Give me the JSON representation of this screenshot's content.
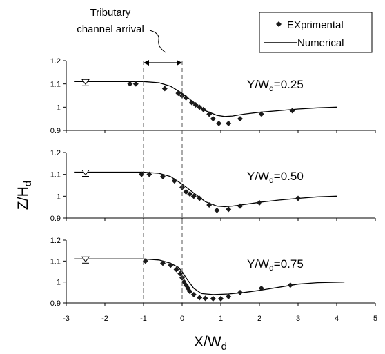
{
  "chart_data": [
    {
      "type": "scatter",
      "panel_label": "Y/W",
      "panel_sub": "d",
      "panel_value": "=0.25",
      "ylim": [
        0.9,
        1.2
      ],
      "xlim": [
        -3,
        5
      ],
      "yticks": [
        "1.2",
        "1.1",
        "1",
        "0.9"
      ],
      "series": [
        {
          "name": "EXprimental",
          "style": "marker",
          "x": [
            -1.35,
            -1.2,
            -0.45,
            -0.1,
            0.0,
            0.1,
            0.25,
            0.35,
            0.45,
            0.55,
            0.7,
            0.8,
            0.95,
            1.2,
            1.5,
            2.05,
            2.85
          ],
          "y": [
            1.1,
            1.1,
            1.08,
            1.06,
            1.05,
            1.04,
            1.02,
            1.01,
            1.0,
            0.99,
            0.97,
            0.95,
            0.93,
            0.93,
            0.95,
            0.97,
            0.985
          ]
        },
        {
          "name": "Numerical",
          "style": "line",
          "x": [
            -2.8,
            -1.0,
            -0.6,
            -0.3,
            0.0,
            0.3,
            0.6,
            0.9,
            1.1,
            1.3,
            1.6,
            2.0,
            2.5,
            3.0,
            3.5,
            4.0
          ],
          "y": [
            1.11,
            1.11,
            1.105,
            1.09,
            1.06,
            1.02,
            0.985,
            0.965,
            0.96,
            0.962,
            0.97,
            0.978,
            0.985,
            0.992,
            0.997,
            1.0
          ]
        }
      ],
      "reference_marker": {
        "x": -2.5,
        "y": 1.11
      }
    },
    {
      "type": "scatter",
      "panel_label": "Y/W",
      "panel_sub": "d",
      "panel_value": "=0.50",
      "ylim": [
        0.9,
        1.2
      ],
      "xlim": [
        -3,
        5
      ],
      "yticks": [
        "1.2",
        "1.1",
        "1",
        "0.9"
      ],
      "series": [
        {
          "name": "EXprimental",
          "style": "marker",
          "x": [
            -1.05,
            -0.85,
            -0.5,
            -0.2,
            0.0,
            0.1,
            0.2,
            0.3,
            0.45,
            0.7,
            0.9,
            1.2,
            1.5,
            2.0,
            3.0
          ],
          "y": [
            1.1,
            1.1,
            1.09,
            1.07,
            1.04,
            1.02,
            1.01,
            1.0,
            0.99,
            0.96,
            0.935,
            0.94,
            0.955,
            0.97,
            0.99
          ]
        },
        {
          "name": "Numerical",
          "style": "line",
          "x": [
            -2.8,
            -1.0,
            -0.6,
            -0.3,
            0.0,
            0.3,
            0.6,
            0.9,
            1.1,
            1.3,
            1.6,
            2.0,
            2.5,
            3.0,
            3.5,
            4.0
          ],
          "y": [
            1.11,
            1.11,
            1.105,
            1.09,
            1.055,
            1.015,
            0.975,
            0.955,
            0.952,
            0.955,
            0.962,
            0.972,
            0.982,
            0.99,
            0.997,
            1.0
          ]
        }
      ],
      "reference_marker": {
        "x": -2.5,
        "y": 1.11
      }
    },
    {
      "type": "scatter",
      "panel_label": "Y/W",
      "panel_sub": "d",
      "panel_value": "=0.75",
      "ylim": [
        0.9,
        1.2
      ],
      "xlim": [
        -3,
        5
      ],
      "yticks": [
        "1.2",
        "1.1",
        "1",
        "0.9"
      ],
      "xticks": [
        "-3",
        "-2",
        "-1",
        "0",
        "1",
        "2",
        "3",
        "4",
        "5"
      ],
      "series": [
        {
          "name": "EXprimental",
          "style": "marker",
          "x": [
            -0.95,
            -0.5,
            -0.3,
            -0.15,
            -0.05,
            0.0,
            0.05,
            0.1,
            0.15,
            0.2,
            0.3,
            0.45,
            0.6,
            0.8,
            1.0,
            1.2,
            1.5,
            2.05,
            2.8
          ],
          "y": [
            1.1,
            1.09,
            1.08,
            1.06,
            1.04,
            1.02,
            1.0,
            0.985,
            0.97,
            0.955,
            0.94,
            0.925,
            0.922,
            0.92,
            0.92,
            0.93,
            0.95,
            0.97,
            0.985
          ]
        },
        {
          "name": "Numerical",
          "style": "line",
          "x": [
            -2.8,
            -1.0,
            -0.6,
            -0.3,
            -0.1,
            0.0,
            0.1,
            0.3,
            0.5,
            0.8,
            1.2,
            1.6,
            2.0,
            2.5,
            3.0,
            3.5,
            4.2
          ],
          "y": [
            1.11,
            1.11,
            1.105,
            1.09,
            1.07,
            1.05,
            1.02,
            0.97,
            0.945,
            0.94,
            0.943,
            0.95,
            0.96,
            0.975,
            0.99,
            0.997,
            1.0
          ]
        }
      ],
      "reference_marker": {
        "x": -2.5,
        "y": 1.11
      }
    }
  ],
  "legend": {
    "items": [
      {
        "label": "EXprimental",
        "style": "marker"
      },
      {
        "label": "Numerical",
        "style": "line"
      }
    ],
    "placement": "top-right"
  },
  "annotation": {
    "line1": "Tributary",
    "line2": "channel arrival",
    "x_range": [
      -1,
      0
    ]
  },
  "ylabel": {
    "main": "Z/H",
    "sub": "d"
  },
  "xlabel": {
    "main": "X/W",
    "sub": "d"
  },
  "colors": {
    "marker": "#1a1a1a",
    "line": "#000000",
    "dashed": "#555555"
  }
}
